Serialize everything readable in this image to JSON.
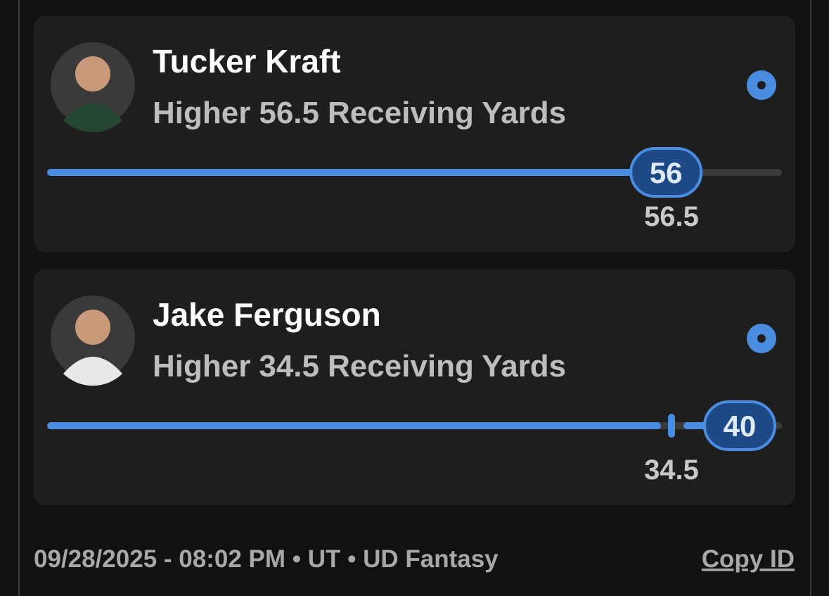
{
  "picks": [
    {
      "player": "Tucker Kraft",
      "direction": "Higher",
      "line": 56.5,
      "stat": "Receiving Yards",
      "actual": 56
    },
    {
      "player": "Jake Ferguson",
      "direction": "Higher",
      "line": 34.5,
      "stat": "Receiving Yards",
      "actual": 40
    }
  ],
  "footer": {
    "info": "09/28/2025 - 08:02 PM • UT • UD Fantasy",
    "action": "Copy ID"
  }
}
